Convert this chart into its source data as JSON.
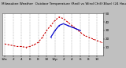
{
  "title": "Milwaukee Weather  Outdoor Temperature (Red) vs Wind Chill (Blue) (24 Hours)",
  "title_fontsize": 3.0,
  "bg_color": "#c0c0c0",
  "plot_bg_color": "#ffffff",
  "hours": [
    0,
    1,
    2,
    3,
    4,
    5,
    6,
    7,
    8,
    9,
    10,
    11,
    12,
    13,
    14,
    15,
    16,
    17,
    18,
    19,
    20,
    21,
    22,
    23
  ],
  "temp_red": [
    14,
    13,
    12,
    11,
    11,
    10,
    11,
    13,
    16,
    22,
    30,
    36,
    42,
    46,
    44,
    40,
    36,
    32,
    28,
    24,
    22,
    20,
    18,
    16
  ],
  "wind_chill_blue": [
    null,
    null,
    null,
    null,
    null,
    null,
    null,
    null,
    null,
    null,
    null,
    22,
    30,
    36,
    38,
    36,
    34,
    32,
    30,
    null,
    null,
    null,
    null,
    null
  ],
  "ylim": [
    0,
    50
  ],
  "yticks": [
    10,
    20,
    30,
    40,
    50
  ],
  "ytick_labels": [
    "10",
    "20",
    "30",
    "40",
    "50"
  ],
  "ylabel_fontsize": 3.0,
  "xlabel_fontsize": 2.5,
  "xtick_positions": [
    0,
    2,
    4,
    6,
    8,
    10,
    12,
    14,
    16,
    18,
    20,
    22
  ],
  "xtick_labels": [
    "12a",
    "2",
    "4",
    "6",
    "8",
    "10",
    "12p",
    "2",
    "4",
    "6",
    "8",
    "10"
  ],
  "grid_color": "#888888",
  "red_color": "#cc0000",
  "blue_color": "#0000cc",
  "black_color": "#000000",
  "line_width": 0.8,
  "marker_size": 1.5
}
